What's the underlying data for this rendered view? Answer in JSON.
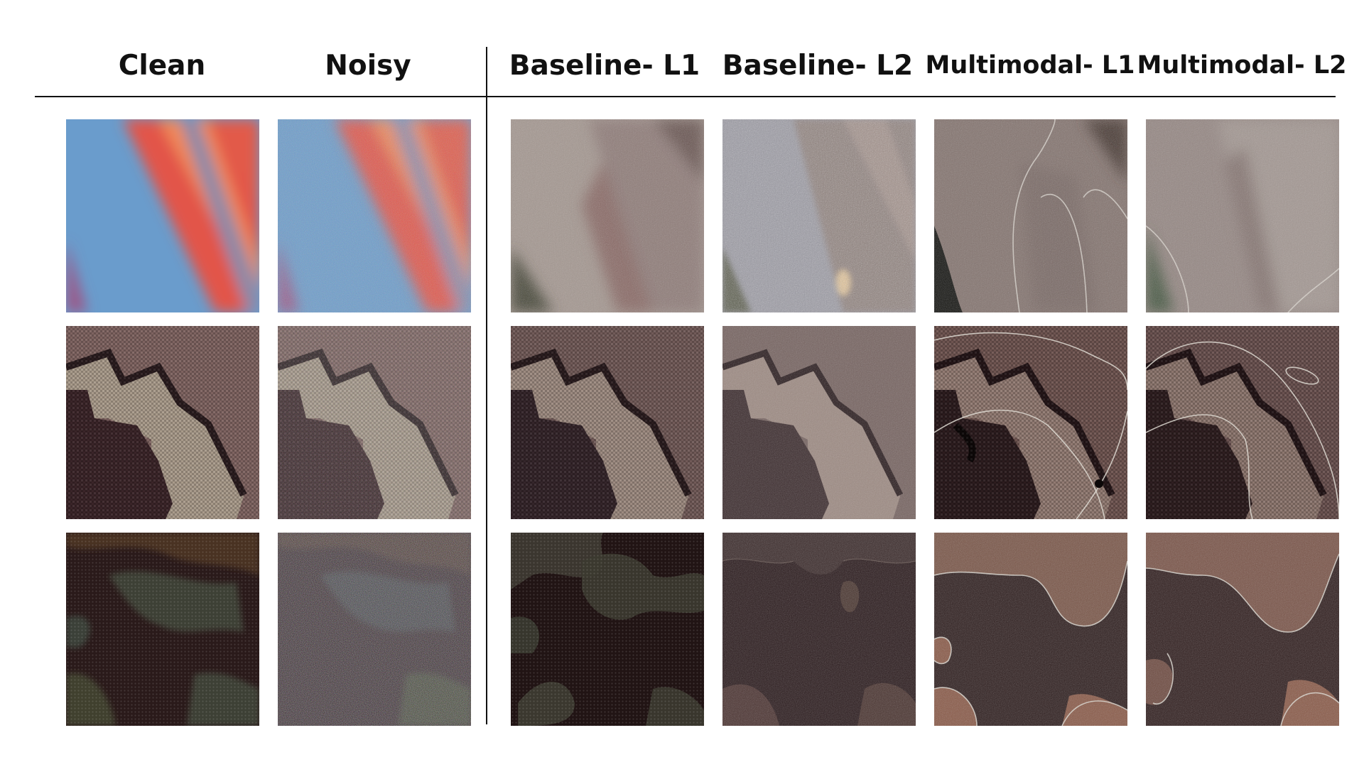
{
  "figure": {
    "columns": [
      {
        "id": "clean",
        "label": "Clean"
      },
      {
        "id": "noisy",
        "label": "Noisy"
      },
      {
        "id": "baseline_l1",
        "label": "Baseline- L1"
      },
      {
        "id": "baseline_l2",
        "label": "Baseline- L2"
      },
      {
        "id": "multimodal_l1",
        "label": "Multimodal- L1"
      },
      {
        "id": "multimodal_l2",
        "label": "Multimodal- L2"
      }
    ],
    "rows": [
      {
        "id": "row1-colorful-stripes"
      },
      {
        "id": "row2-woven-pattern"
      },
      {
        "id": "row3-dark-textile"
      }
    ]
  },
  "colors": {
    "text": "#111111",
    "stripe_blue": "#6a9ccc",
    "stripe_red": "#e2544a",
    "stripe_orange": "#f0895a",
    "fabric_mauve": "#7e6360",
    "fabric_dark": "#3a2428",
    "fabric_beige": "#a89a8a",
    "dark_brown": "#2a1a1a",
    "copper": "#8a5a48",
    "outline": "#dedad2"
  }
}
